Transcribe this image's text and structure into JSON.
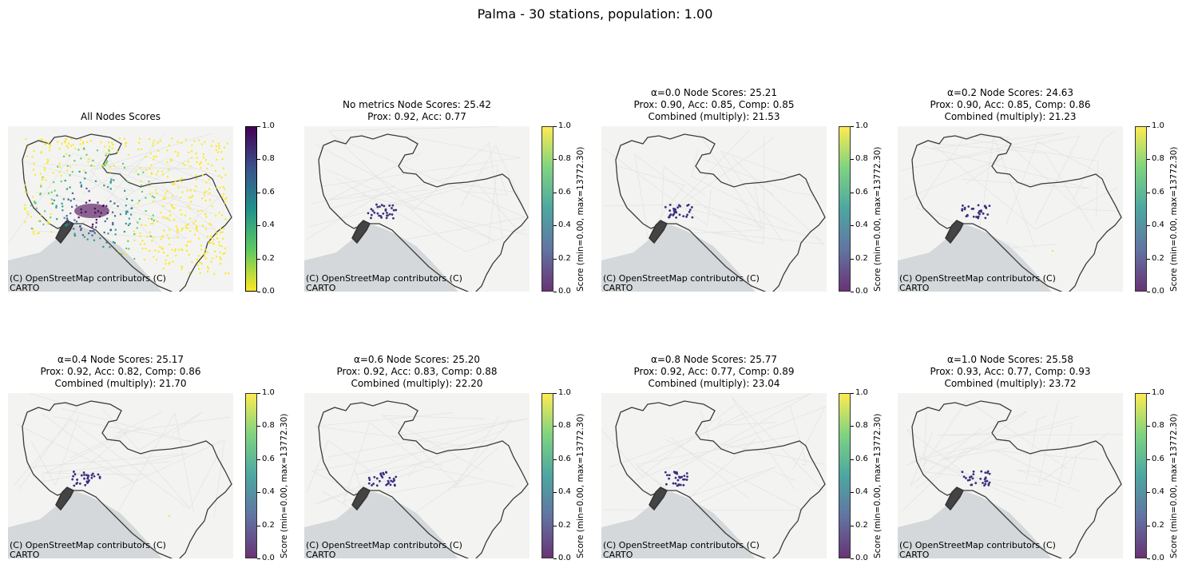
{
  "suptitle": "Palma - 30 stations, population: 1.00",
  "attribution": "(C) OpenStreetMap contributors (C) CARTO",
  "colormaps": {
    "viridis_r": [
      "#fde725",
      "#5ec962",
      "#21918c",
      "#3b528b",
      "#440154"
    ],
    "viridis": [
      "#440154",
      "#3b528b",
      "#21918c",
      "#5ec962",
      "#fde725"
    ]
  },
  "panels": [
    {
      "title": "All Nodes Scores",
      "cmap": "viridis_r",
      "colorbar_label": "",
      "ticks": [
        "1.0",
        "0.8",
        "0.6",
        "0.4",
        "0.2",
        "0.0"
      ],
      "kind": "all"
    },
    {
      "title": "No metrics Node Scores: 25.42\nProx: 0.92, Acc: 0.77",
      "cmap": "viridis",
      "colorbar_label": "Score (min=0.00, max=13772.30)",
      "ticks": [
        "1.0",
        "0.8",
        "0.6",
        "0.4",
        "0.2",
        "0.0"
      ],
      "kind": "stations"
    },
    {
      "title": "α=0.0 Node Scores: 25.21\nProx: 0.90, Acc: 0.85, Comp: 0.85\nCombined (multiply): 21.53",
      "cmap": "viridis",
      "colorbar_label": "Score (min=0.00, max=13772.30)",
      "ticks": [
        "1.0",
        "0.8",
        "0.6",
        "0.4",
        "0.2",
        "0.0"
      ],
      "kind": "stations"
    },
    {
      "title": "α=0.2 Node Scores: 24.63\nProx: 0.90, Acc: 0.85, Comp: 0.86\nCombined (multiply): 21.23",
      "cmap": "viridis",
      "colorbar_label": "Score (min=0.00, max=13772.30)",
      "ticks": [
        "1.0",
        "0.8",
        "0.6",
        "0.4",
        "0.2",
        "0.0"
      ],
      "kind": "stations"
    },
    {
      "title": "α=0.4 Node Scores: 25.17\nProx: 0.92, Acc: 0.82, Comp: 0.86\nCombined (multiply): 21.70",
      "cmap": "viridis",
      "colorbar_label": "Score (min=0.00, max=13772.30)",
      "ticks": [
        "1.0",
        "0.8",
        "0.6",
        "0.4",
        "0.2",
        "0.0"
      ],
      "kind": "stations"
    },
    {
      "title": "α=0.6 Node Scores: 25.20\nProx: 0.92, Acc: 0.83, Comp: 0.88\nCombined (multiply): 22.20",
      "cmap": "viridis",
      "colorbar_label": "Score (min=0.00, max=13772.30)",
      "ticks": [
        "1.0",
        "0.8",
        "0.6",
        "0.4",
        "0.2",
        "0.0"
      ],
      "kind": "stations"
    },
    {
      "title": "α=0.8 Node Scores: 25.77\nProx: 0.92, Acc: 0.77, Comp: 0.89\nCombined (multiply): 23.04",
      "cmap": "viridis",
      "colorbar_label": "Score (min=0.00, max=13772.30)",
      "ticks": [
        "1.0",
        "0.8",
        "0.6",
        "0.4",
        "0.2",
        "0.0"
      ],
      "kind": "stations"
    },
    {
      "title": "α=1.0 Node Scores: 25.58\nProx: 0.93, Acc: 0.77, Comp: 0.93\nCombined (multiply): 23.72",
      "cmap": "viridis",
      "colorbar_label": "Score (min=0.00, max=13772.30)",
      "ticks": [
        "1.0",
        "0.8",
        "0.6",
        "0.4",
        "0.2",
        "0.0"
      ],
      "kind": "stations"
    }
  ],
  "chart_data": {
    "type": "scatter",
    "title": "Palma - 30 stations, population: 1.00",
    "colorbar_range": [
      0.0,
      1.0
    ],
    "score_range": {
      "min": 0.0,
      "max": 13772.3
    },
    "panels": [
      {
        "label": "All Nodes Scores"
      },
      {
        "label": "No metrics",
        "node_scores": 25.42,
        "prox": 0.92,
        "acc": 0.77
      },
      {
        "label": "α=0.0",
        "node_scores": 25.21,
        "prox": 0.9,
        "acc": 0.85,
        "comp": 0.85,
        "combined_multiply": 21.53
      },
      {
        "label": "α=0.2",
        "node_scores": 24.63,
        "prox": 0.9,
        "acc": 0.85,
        "comp": 0.86,
        "combined_multiply": 21.23
      },
      {
        "label": "α=0.4",
        "node_scores": 25.17,
        "prox": 0.92,
        "acc": 0.82,
        "comp": 0.86,
        "combined_multiply": 21.7
      },
      {
        "label": "α=0.6",
        "node_scores": 25.2,
        "prox": 0.92,
        "acc": 0.83,
        "comp": 0.88,
        "combined_multiply": 22.2
      },
      {
        "label": "α=0.8",
        "node_scores": 25.77,
        "prox": 0.92,
        "acc": 0.77,
        "comp": 0.89,
        "combined_multiply": 23.04
      },
      {
        "label": "α=1.0",
        "node_scores": 25.58,
        "prox": 0.93,
        "acc": 0.77,
        "comp": 0.93,
        "combined_multiply": 23.72
      }
    ]
  }
}
